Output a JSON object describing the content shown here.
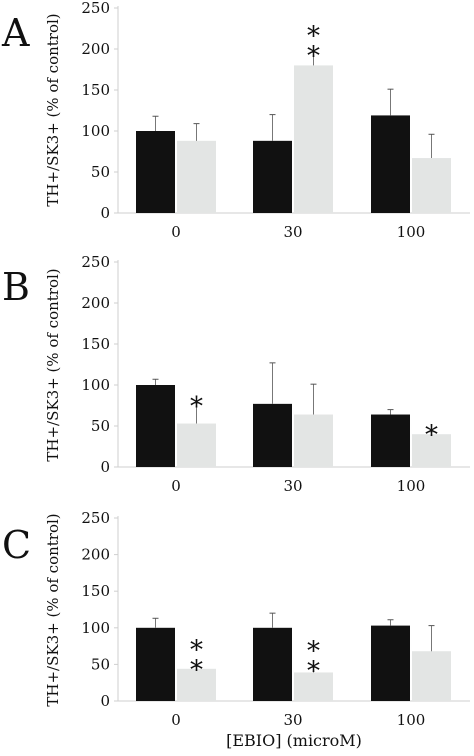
{
  "colors": {
    "series1": "#111111",
    "series2": "#e3e5e4",
    "axis": "#cfcfcf",
    "text": "#111111"
  },
  "chart_data": [
    {
      "type": "bar",
      "panel": "A",
      "title": "",
      "xlabel": "",
      "ylabel": "TH+/SK3+ (% of control)",
      "ylim": [
        0,
        250
      ],
      "yticks": [
        "0",
        "50",
        "100",
        "150",
        "200",
        "250"
      ],
      "categories": [
        "0",
        "30",
        "100"
      ],
      "grid": false,
      "series": [
        {
          "values": [
            100,
            88,
            119
          ],
          "errors": [
            18,
            32,
            32
          ]
        },
        {
          "values": [
            88,
            180,
            67
          ],
          "errors": [
            21,
            16,
            29
          ]
        }
      ],
      "annotations": [
        {
          "category": "30",
          "series": 1,
          "text": "*\n*"
        }
      ]
    },
    {
      "type": "bar",
      "panel": "B",
      "title": "",
      "xlabel": "",
      "ylabel": "TH+/SK3+ (% of control)",
      "ylim": [
        0,
        250
      ],
      "yticks": [
        "0",
        "50",
        "100",
        "150",
        "200",
        "250"
      ],
      "categories": [
        "0",
        "30",
        "100"
      ],
      "grid": false,
      "series": [
        {
          "values": [
            100,
            77,
            64
          ],
          "errors": [
            7,
            50,
            6
          ]
        },
        {
          "values": [
            53,
            64,
            40
          ],
          "errors": [
            25,
            37,
            3
          ]
        }
      ],
      "annotations": [
        {
          "category": "0",
          "series": 1,
          "text": "*"
        },
        {
          "category": "100",
          "series": 1,
          "text": "*"
        }
      ]
    },
    {
      "type": "bar",
      "panel": "C",
      "title": "",
      "xlabel": "[EBIO] (microM)",
      "ylabel": "TH+/SK3+ (% of control)",
      "ylim": [
        0,
        250
      ],
      "yticks": [
        "0",
        "50",
        "100",
        "150",
        "200",
        "250"
      ],
      "categories": [
        "0",
        "30",
        "100"
      ],
      "grid": false,
      "series": [
        {
          "values": [
            100,
            100,
            103
          ],
          "errors": [
            13,
            20,
            8
          ]
        },
        {
          "values": [
            44,
            39,
            68
          ],
          "errors": [
            3,
            7,
            35
          ]
        }
      ],
      "annotations": [
        {
          "category": "0",
          "series": 1,
          "text": "*\n*"
        },
        {
          "category": "30",
          "series": 1,
          "text": "*\n*"
        }
      ]
    }
  ]
}
